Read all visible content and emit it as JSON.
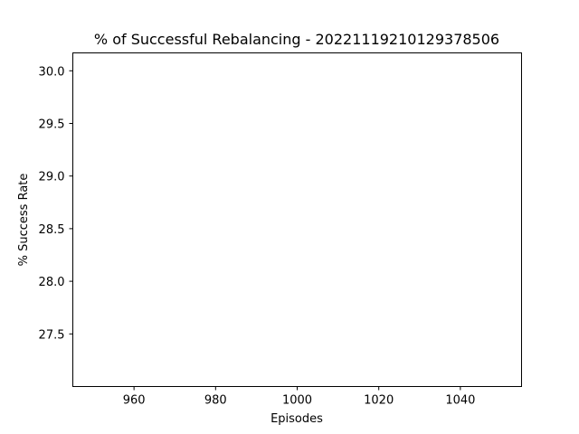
{
  "chart_data": {
    "type": "line",
    "title": "% of Successful Rebalancing - 20221119210129378506",
    "xlabel": "Episodes",
    "ylabel": "% Success Rate",
    "xlim": [
      945,
      1055
    ],
    "ylim": [
      27.0,
      30.17
    ],
    "xticks": [
      960,
      980,
      1000,
      1020,
      1040
    ],
    "xtick_labels": [
      "960",
      "980",
      "1000",
      "1020",
      "1040"
    ],
    "yticks": [
      27.5,
      28.0,
      28.5,
      29.0,
      29.5,
      30.0
    ],
    "ytick_labels": [
      "27.5",
      "28.0",
      "28.5",
      "29.0",
      "29.5",
      "30.0"
    ],
    "series": [],
    "grid": false,
    "legend": false
  }
}
